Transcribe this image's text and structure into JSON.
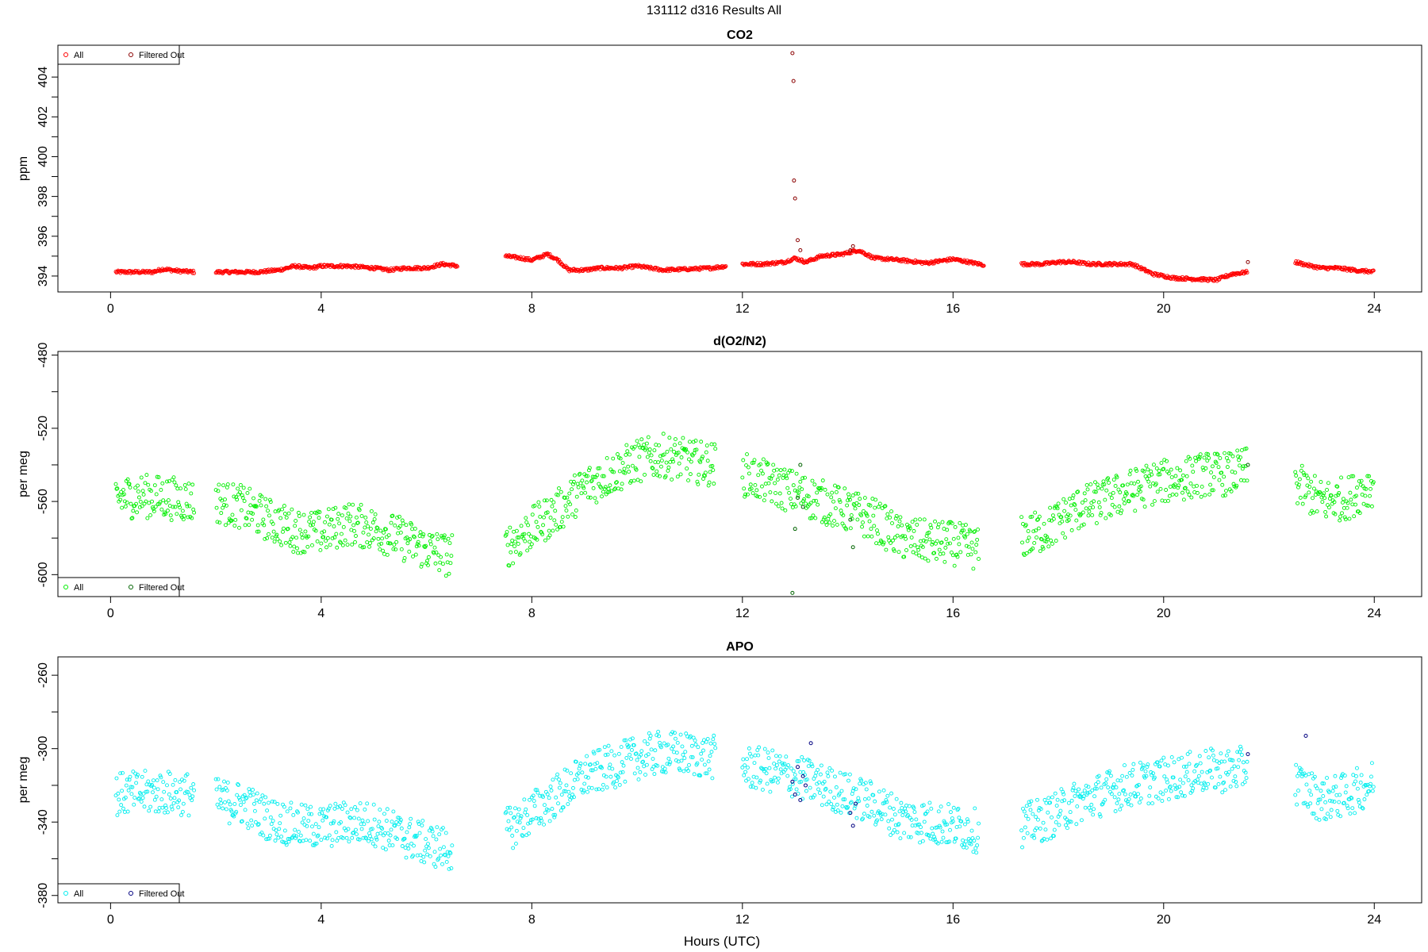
{
  "figure_title": "131112   d316   Results All",
  "xlabel": "Hours (UTC)",
  "chart_data": [
    {
      "type": "scatter",
      "title": "CO2",
      "ylabel": "ppm",
      "xlim": [
        -1.0,
        24.9
      ],
      "ylim": [
        393.2,
        405.6
      ],
      "xticks": [
        0,
        4,
        8,
        12,
        16,
        20,
        24
      ],
      "yticks": [
        394,
        396,
        398,
        400,
        402,
        404
      ],
      "legend_position": "top-left",
      "series": [
        {
          "name": "All",
          "color": "#ff0000",
          "segments": [
            {
              "x": [
                0.1,
                0.5,
                0.8,
                1.0,
                1.3,
                1.6
              ],
              "y": [
                394.2,
                394.2,
                394.2,
                394.35,
                394.25,
                394.2
              ]
            },
            {
              "x": [
                2.0,
                2.5,
                2.8,
                3.2,
                3.5,
                3.8,
                4.0,
                4.5,
                5.0,
                5.3,
                5.6,
                6.0,
                6.3,
                6.6
              ],
              "y": [
                394.2,
                394.2,
                394.2,
                394.3,
                394.5,
                394.4,
                394.5,
                394.5,
                394.4,
                394.3,
                394.4,
                394.4,
                394.6,
                394.5
              ]
            },
            {
              "x": [
                7.5,
                7.8,
                8.0,
                8.3,
                8.5,
                8.7,
                9.0,
                9.3,
                9.7,
                10.0,
                10.5,
                11.0,
                11.4,
                11.7
              ],
              "y": [
                395.0,
                394.9,
                394.8,
                395.1,
                394.8,
                394.3,
                394.3,
                394.4,
                394.4,
                394.5,
                394.3,
                394.35,
                394.4,
                394.5
              ]
            },
            {
              "x": [
                12.0,
                12.4,
                12.8,
                13.0,
                13.2,
                13.5,
                13.9,
                14.2,
                14.5,
                15.0,
                15.5,
                16.0,
                16.3,
                16.6
              ],
              "y": [
                394.6,
                394.6,
                394.7,
                394.9,
                394.7,
                395.0,
                395.1,
                395.3,
                394.9,
                394.8,
                394.65,
                394.85,
                394.7,
                394.55
              ]
            },
            {
              "x": [
                17.3,
                17.7,
                18.0,
                18.3,
                18.6,
                19.0,
                19.4,
                19.8,
                20.2,
                20.6,
                21.0,
                21.3,
                21.6
              ],
              "y": [
                394.6,
                394.6,
                394.7,
                394.7,
                394.6,
                394.6,
                394.6,
                394.1,
                393.9,
                393.85,
                393.8,
                394.1,
                394.2
              ]
            },
            {
              "x": [
                22.5,
                22.8,
                23.0,
                23.3,
                23.6,
                24.0
              ],
              "y": [
                394.7,
                394.5,
                394.4,
                394.4,
                394.3,
                394.2
              ]
            }
          ]
        },
        {
          "name": "Filtered Out",
          "color": "#8b0000",
          "x": [
            12.95,
            12.97,
            12.98,
            13.0,
            13.05,
            13.1,
            14.05,
            14.1,
            21.6
          ],
          "y": [
            405.2,
            403.8,
            398.8,
            397.9,
            395.8,
            395.3,
            395.3,
            395.5,
            394.7
          ]
        }
      ]
    },
    {
      "type": "scatter",
      "title": "d(O2/N2)",
      "ylabel": "per meg",
      "xlim": [
        -1.0,
        24.9
      ],
      "ylim": [
        -612,
        -478
      ],
      "xticks": [
        0,
        4,
        8,
        12,
        16,
        20,
        24
      ],
      "yticks": [
        -600,
        -560,
        -520,
        -480
      ],
      "legend_position": "bottom-left",
      "series": [
        {
          "name": "All",
          "color": "#00ee00",
          "segments": [
            {
              "x": [
                0.1,
                0.6,
                1.1,
                1.6
              ],
              "y": [
                -558,
                -557,
                -558,
                -560
              ]
            },
            {
              "x": [
                2.0,
                2.5,
                3.0,
                3.5,
                4.0,
                4.5,
                5.0,
                5.5,
                6.0,
                6.5
              ],
              "y": [
                -560,
                -563,
                -570,
                -576,
                -577,
                -572,
                -575,
                -580,
                -586,
                -590
              ]
            },
            {
              "x": [
                7.5,
                8.0,
                8.5,
                9.0,
                9.5,
                10.0,
                10.5,
                11.0,
                11.5
              ],
              "y": [
                -585,
                -575,
                -565,
                -552,
                -545,
                -538,
                -535,
                -538,
                -540
              ]
            },
            {
              "x": [
                12.0,
                12.5,
                13.0,
                13.5,
                14.0,
                14.5,
                15.0,
                15.5,
                16.0,
                16.5
              ],
              "y": [
                -545,
                -550,
                -555,
                -560,
                -565,
                -570,
                -580,
                -582,
                -583,
                -586
              ]
            },
            {
              "x": [
                17.3,
                17.8,
                18.3,
                18.8,
                19.3,
                19.8,
                20.3,
                20.8,
                21.3,
                21.6
              ],
              "y": [
                -580,
                -575,
                -565,
                -560,
                -555,
                -550,
                -548,
                -545,
                -545,
                -542
              ]
            },
            {
              "x": [
                22.5,
                23.0,
                23.5,
                24.0
              ],
              "y": [
                -550,
                -560,
                -558,
                -550
              ]
            }
          ]
        },
        {
          "name": "Filtered Out",
          "color": "#006400",
          "x": [
            12.95,
            13.0,
            13.05,
            13.1,
            13.15,
            14.05,
            14.1,
            21.6
          ],
          "y": [
            -610,
            -575,
            -558,
            -540,
            -563,
            -570,
            -585,
            -540
          ]
        }
      ]
    },
    {
      "type": "scatter",
      "title": "APO",
      "ylabel": "per meg",
      "xlim": [
        -1.0,
        24.9
      ],
      "ylim": [
        -384,
        -250
      ],
      "xticks": [
        0,
        4,
        8,
        12,
        16,
        20,
        24
      ],
      "yticks": [
        -380,
        -340,
        -300,
        -260
      ],
      "legend_position": "bottom-left",
      "series": [
        {
          "name": "All",
          "color": "#00eeee",
          "segments": [
            {
              "x": [
                0.1,
                0.6,
                1.1,
                1.6
              ],
              "y": [
                -325,
                -324,
                -324,
                -325
              ]
            },
            {
              "x": [
                2.0,
                2.5,
                3.0,
                3.5,
                4.0,
                4.5,
                5.0,
                5.5,
                6.0,
                6.5
              ],
              "y": [
                -328,
                -330,
                -338,
                -342,
                -343,
                -340,
                -341,
                -347,
                -352,
                -355
              ]
            },
            {
              "x": [
                7.5,
                8.0,
                8.5,
                9.0,
                9.5,
                10.0,
                10.5,
                11.0,
                11.5
              ],
              "y": [
                -345,
                -335,
                -325,
                -315,
                -310,
                -305,
                -302,
                -303,
                -305
              ]
            },
            {
              "x": [
                12.0,
                12.5,
                13.0,
                13.5,
                14.0,
                14.5,
                15.0,
                15.5,
                16.0,
                16.5
              ],
              "y": [
                -310,
                -312,
                -315,
                -320,
                -325,
                -330,
                -338,
                -340,
                -342,
                -345
              ]
            },
            {
              "x": [
                17.3,
                17.8,
                18.3,
                18.8,
                19.3,
                19.8,
                20.3,
                20.8,
                21.3,
                21.6
              ],
              "y": [
                -342,
                -338,
                -330,
                -325,
                -320,
                -318,
                -315,
                -312,
                -312,
                -310
              ]
            },
            {
              "x": [
                22.5,
                23.0,
                23.5,
                24.0
              ],
              "y": [
                -318,
                -328,
                -325,
                -318
              ]
            }
          ]
        },
        {
          "name": "Filtered Out",
          "color": "#000080",
          "x": [
            12.95,
            13.0,
            13.05,
            13.1,
            13.15,
            13.2,
            13.3,
            14.05,
            14.1,
            14.15,
            22.7,
            21.6
          ],
          "y": [
            -318,
            -325,
            -310,
            -328,
            -315,
            -320,
            -297,
            -335,
            -342,
            -330,
            -293,
            -303
          ]
        }
      ]
    }
  ]
}
